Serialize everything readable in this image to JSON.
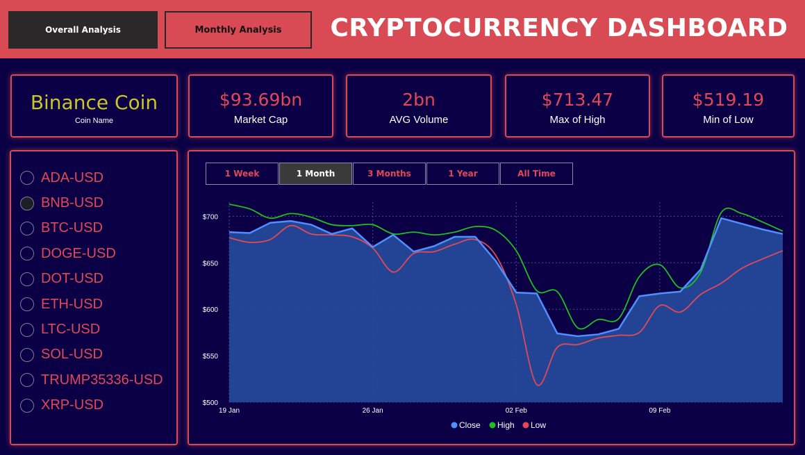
{
  "nav": {
    "overall_label": "Overall Analysis",
    "monthly_label": "Monthly Analysis"
  },
  "header": {
    "title": "CRYPTOCURRENCY DASHBOARD"
  },
  "coin_card": {
    "value": "Binance Coin",
    "label": "Coin Name"
  },
  "kpis": [
    {
      "value": "$93.69bn",
      "label": "Market Cap"
    },
    {
      "value": "2bn",
      "label": "AVG Volume"
    },
    {
      "value": "$713.47",
      "label": "Max of High"
    },
    {
      "value": "$519.19",
      "label": "Min of Low"
    }
  ],
  "coins": [
    {
      "label": "ADA-USD",
      "selected": false
    },
    {
      "label": "BNB-USD",
      "selected": true
    },
    {
      "label": "BTC-USD",
      "selected": false
    },
    {
      "label": "DOGE-USD",
      "selected": false
    },
    {
      "label": "DOT-USD",
      "selected": false
    },
    {
      "label": "ETH-USD",
      "selected": false
    },
    {
      "label": "LTC-USD",
      "selected": false
    },
    {
      "label": "SOL-USD",
      "selected": false
    },
    {
      "label": "TRUMP35336-USD",
      "selected": false
    },
    {
      "label": "XRP-USD",
      "selected": false
    }
  ],
  "time_buttons": [
    {
      "label": "1 Week",
      "active": false
    },
    {
      "label": "1 Month",
      "active": true
    },
    {
      "label": "3 Months",
      "active": false
    },
    {
      "label": "1 Year",
      "active": false
    },
    {
      "label": "All Time",
      "active": false
    }
  ],
  "colors": {
    "accent": "#d84b55",
    "background": "#0b0045",
    "close": "#4f8fff",
    "high": "#1fbf1f",
    "low": "#e04955",
    "area": "#25479a"
  },
  "chart_data": {
    "type": "line",
    "x": [
      "2025-01-19",
      "2025-01-20",
      "2025-01-21",
      "2025-01-22",
      "2025-01-23",
      "2025-01-24",
      "2025-01-25",
      "2025-01-26",
      "2025-01-27",
      "2025-01-28",
      "2025-01-29",
      "2025-01-30",
      "2025-01-31",
      "2025-02-01",
      "2025-02-02",
      "2025-02-03",
      "2025-02-04",
      "2025-02-05",
      "2025-02-06",
      "2025-02-07",
      "2025-02-08",
      "2025-02-09",
      "2025-02-10",
      "2025-02-11",
      "2025-02-12",
      "2025-02-13",
      "2025-02-14",
      "2025-02-15"
    ],
    "x_ticks": [
      {
        "date": "2025-01-19",
        "label": "19 Jan"
      },
      {
        "date": "2025-01-26",
        "label": "26 Jan"
      },
      {
        "date": "2025-02-02",
        "label": "02 Feb"
      },
      {
        "date": "2025-02-09",
        "label": "09 Feb"
      }
    ],
    "y_ticks": [
      {
        "value": 500,
        "label": "$500"
      },
      {
        "value": 550,
        "label": "$550"
      },
      {
        "value": 600,
        "label": "$600"
      },
      {
        "value": 650,
        "label": "$650"
      },
      {
        "value": 700,
        "label": "$700"
      }
    ],
    "ylim": [
      500,
      713
    ],
    "grid": true,
    "legend": "bottom-center",
    "series": [
      {
        "name": "Close",
        "area": true,
        "values": [
          683,
          682,
          693,
          695,
          691,
          681,
          687,
          667,
          680,
          662,
          668,
          678,
          678,
          652,
          618,
          617,
          574,
          571,
          573,
          579,
          614,
          617,
          619,
          643,
          698,
          692,
          686,
          681
        ]
      },
      {
        "name": "High",
        "values": [
          713,
          708,
          698,
          703,
          699,
          691,
          690,
          691,
          681,
          683,
          680,
          683,
          689,
          685,
          663,
          620,
          619,
          580,
          589,
          590,
          635,
          648,
          623,
          640,
          704,
          703,
          694,
          684
        ]
      },
      {
        "name": "Low",
        "values": [
          677,
          672,
          675,
          690,
          681,
          680,
          678,
          666,
          640,
          660,
          662,
          670,
          675,
          658,
          605,
          519,
          559,
          562,
          569,
          572,
          575,
          604,
          597,
          616,
          628,
          644,
          654,
          663
        ]
      }
    ]
  }
}
